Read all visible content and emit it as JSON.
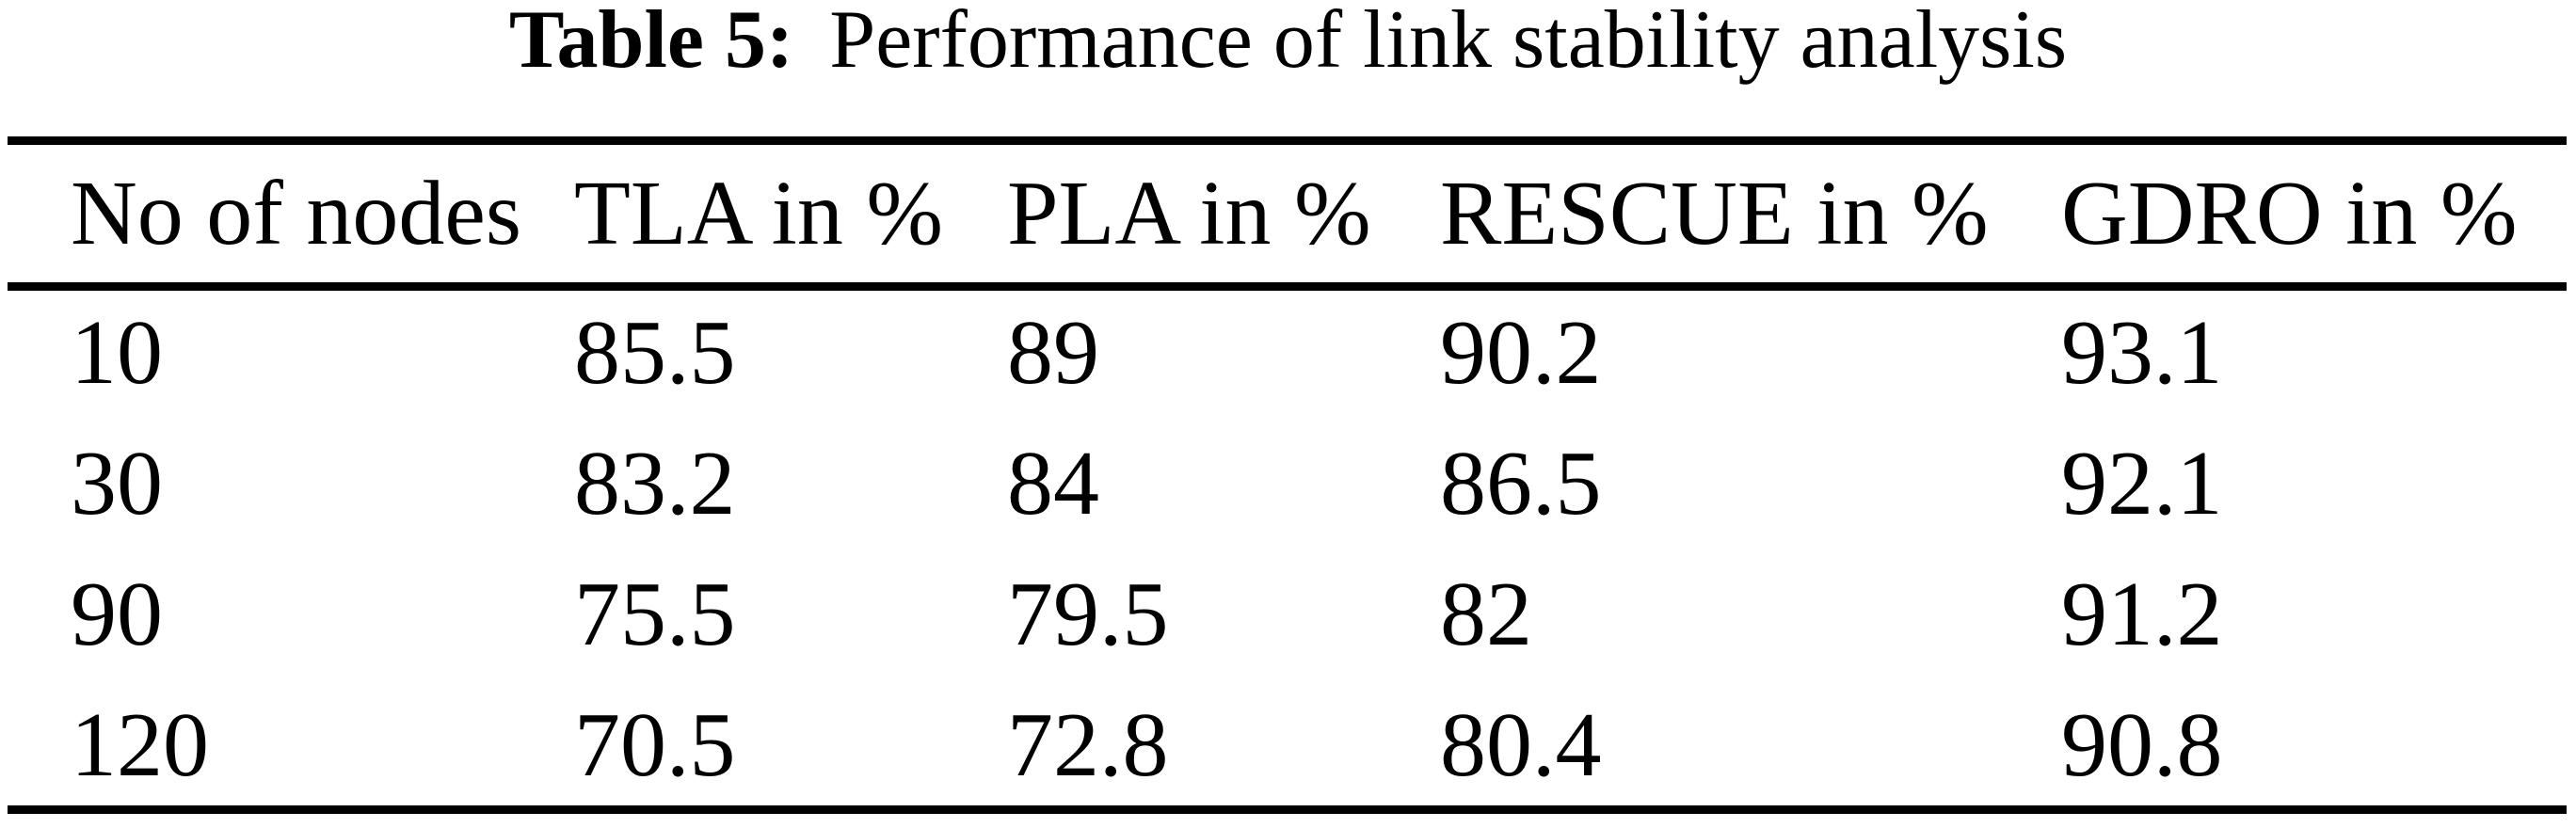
{
  "caption": {
    "label": "Table 5:",
    "title": "Performance of link stability analysis"
  },
  "chart_data": {
    "type": "table",
    "title": "Performance of link stability analysis",
    "columns": [
      "No of nodes",
      "TLA in %",
      "PLA in %",
      "RESCUE in %",
      "GDRO in %"
    ],
    "rows": [
      [
        "10",
        "85.5",
        "89",
        "90.2",
        "93.1"
      ],
      [
        "30",
        "83.2",
        "84",
        "86.5",
        "92.1"
      ],
      [
        "90",
        "75.5",
        "79.5",
        "82",
        "91.2"
      ],
      [
        "120",
        "70.5",
        "72.8",
        "80.4",
        "90.8"
      ]
    ]
  },
  "colors": {
    "background": "#ffffff",
    "text": "#000000",
    "rule": "#000000"
  }
}
